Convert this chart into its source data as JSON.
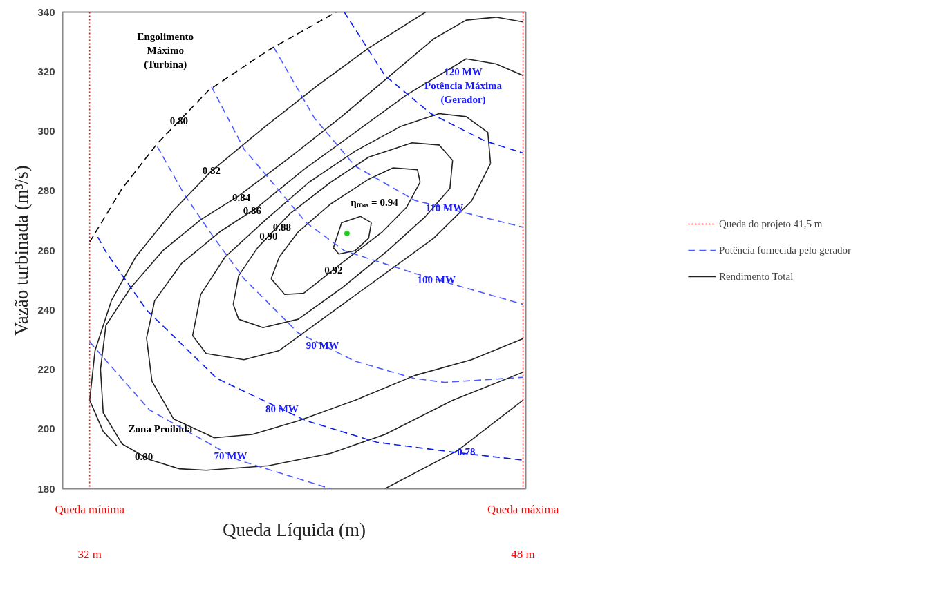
{
  "chart_data": {
    "type": "line",
    "xlabel": "Queda Líquida (m)",
    "ylabel": "Vazão turbinada (m³/s)",
    "xlim": [
      31,
      48.1
    ],
    "ylim": [
      180,
      340
    ],
    "xticks": [
      {
        "value": 32,
        "label": "32 m"
      },
      {
        "value": 48,
        "label": "48 m"
      }
    ],
    "yticks": [
      180,
      200,
      220,
      240,
      260,
      280,
      300,
      320,
      340
    ],
    "grid": false,
    "legend": "right",
    "marker": "none",
    "ref_lines": [
      {
        "axis": "x",
        "value": 32,
        "label": "Queda mínima",
        "color": "#ff0000",
        "line_style": "dotted"
      },
      {
        "axis": "x",
        "value": 48,
        "label": "Queda máxima",
        "color": "#ff0000",
        "line_style": "dotted"
      }
    ],
    "series": [
      {
        "name": "Potência fornecida pelo gerador",
        "color": "#4d5cff",
        "line_style": "dashed",
        "x": [
          34.5,
          35.5,
          36.6,
          37.7,
          39.7,
          41.8,
          44.0,
          45.1,
          48.0
        ],
        "values": [
          294.8,
          278.7,
          264.1,
          250.5,
          232.3,
          222.8,
          217.0,
          215.7,
          217.4
        ]
      },
      {
        "name": "Rendimento Total",
        "color": "#222222",
        "line_style": "solid",
        "x": [
          41.0,
          41.3,
          42.0,
          42.4
        ],
        "values": [
          260.9,
          269.3,
          271.4,
          269.3
        ]
      },
      {
        "color": "#222222",
        "line_style": "solid",
        "x": [
          42.4,
          42.3,
          41.8,
          41.2,
          41.0
        ],
        "values": [
          269.3,
          264.1,
          259.9,
          258.8,
          260.9
        ]
      },
      {
        "color": "#222222",
        "line_style": "solid",
        "x": [
          38.7,
          39.0,
          39.7,
          40.9,
          42.3,
          43.2,
          44.1,
          44.2
        ],
        "values": [
          250.5,
          257.8,
          266.2,
          275.6,
          283.9,
          287.7,
          287.1,
          282.9
        ]
      },
      {
        "color": "#222222",
        "line_style": "solid",
        "x": [
          44.2,
          43.7,
          42.8,
          41.3,
          39.9,
          39.2,
          38.7
        ],
        "values": [
          282.9,
          274.5,
          266.2,
          255.7,
          245.6,
          245.2,
          250.5
        ]
      },
      {
        "color": "#222222",
        "line_style": "solid",
        "x": [
          37.3,
          37.5,
          38.2,
          39.4,
          40.9,
          42.3,
          43.9,
          44.9,
          45.4
        ],
        "values": [
          241.9,
          251.5,
          260.9,
          272.4,
          282.9,
          291.3,
          296.1,
          295.4,
          290.2
        ]
      },
      {
        "color": "#222222",
        "line_style": "solid",
        "x": [
          45.4,
          45.3,
          44.4,
          43.0,
          41.3,
          39.7,
          38.4,
          37.5,
          37.3
        ],
        "values": [
          290.2,
          280.8,
          271.4,
          259.9,
          247.3,
          236.9,
          234.1,
          236.9,
          241.9
        ]
      },
      {
        "color": "#222222",
        "line_style": "solid",
        "x": [
          35.8,
          36.1,
          37.0,
          38.5,
          40.1,
          41.8,
          43.5,
          44.9,
          45.9,
          46.7,
          46.8
        ],
        "values": [
          231.4,
          245.2,
          257.8,
          270.3,
          282.9,
          293.3,
          301.7,
          305.9,
          304.9,
          299.6,
          289.2
        ]
      },
      {
        "color": "#222222",
        "line_style": "solid",
        "x": [
          46.8,
          46.1,
          44.7,
          42.8,
          40.9,
          39.0,
          37.7,
          36.3,
          35.8
        ],
        "values": [
          289.2,
          276.6,
          264.1,
          251.5,
          239.0,
          226.4,
          223.3,
          225.4,
          231.4
        ]
      },
      {
        "color": "#222222",
        "line_style": "solid",
        "x": [
          48.0,
          46.1,
          44.0,
          41.8,
          39.7,
          38.0,
          36.6,
          35.1,
          34.3,
          34.1,
          34.4,
          35.4,
          36.8,
          38.2,
          39.9,
          41.8,
          43.7,
          45.9,
          47.0,
          48.0
        ],
        "values": [
          230.4,
          223.3,
          218.0,
          209.7,
          202.8,
          198.2,
          197.1,
          203.4,
          216.1,
          230.6,
          243.1,
          255.7,
          266.2,
          274.5,
          287.1,
          299.6,
          312.2,
          324.3,
          322.6,
          318.7
        ]
      },
      {
        "color": "#222222",
        "line_style": "solid",
        "x": [
          48.0,
          45.4,
          42.9,
          40.9,
          38.6,
          36.3,
          35.3,
          34.2,
          33.2,
          32.5,
          32.4,
          32.6,
          33.5,
          34.7,
          36.1,
          37.5,
          39.4,
          41.3,
          43.2,
          44.7,
          45.9,
          47.0,
          48.0
        ],
        "values": [
          219.1,
          209.7,
          198.2,
          191.9,
          187.7,
          186.2,
          186.7,
          189.8,
          195.0,
          205.5,
          220.1,
          234.8,
          247.3,
          259.9,
          270.3,
          278.3,
          291.3,
          304.9,
          319.5,
          331.0,
          337.3,
          338.3,
          336.7
        ]
      },
      {
        "color": "#222222",
        "line_style": "solid",
        "x": [
          33.0,
          32.5,
          32.0,
          32.2,
          32.8,
          33.7,
          35.1,
          36.5,
          38.5,
          40.4,
          42.3,
          44.4
        ],
        "values": [
          194.4,
          199.2,
          209.7,
          226.4,
          243.1,
          257.8,
          273.5,
          286.7,
          301.7,
          315.3,
          327.9,
          340
        ]
      },
      {
        "color": "#222222",
        "line_style": "solid",
        "x": [
          42.9,
          45.6,
          48.0
        ],
        "values": [
          180,
          192.9,
          209.7
        ]
      },
      {
        "color": "#000000",
        "line_style": "dashed",
        "x": [
          32.0,
          33.2,
          34.5,
          36.4,
          38.6,
          41.1
        ],
        "values": [
          262.8,
          280.8,
          295.9,
          313.8,
          327.2,
          340
        ]
      },
      {
        "color": "#0a1ef0",
        "line_style": "dashed",
        "x": [
          41.4,
          42.9,
          44.6,
          46.6,
          48.0
        ],
        "values": [
          340,
          318.7,
          305.9,
          296.7,
          292.7
        ]
      },
      {
        "color": "#0a1ef0",
        "line_style": "dashed",
        "x": [
          32.3,
          32.6,
          34.1,
          36.7,
          40.0,
          42.6,
          45.4,
          48.0
        ],
        "values": [
          264.5,
          259.5,
          240.0,
          217.0,
          202.8,
          195.6,
          192.3,
          189.6
        ]
      },
      {
        "color": "#4d5cff",
        "line_style": "dashed",
        "x": [
          38.8,
          40.3,
          41.8,
          44.0,
          48.0
        ],
        "values": [
          328.1,
          304.4,
          288.3,
          276.8,
          267.8
        ]
      },
      {
        "color": "#4d5cff",
        "line_style": "dashed",
        "x": [
          36.5,
          37.7,
          40.0,
          41.4,
          44.0,
          48.0
        ],
        "values": [
          314.9,
          294.0,
          269.3,
          259.9,
          252.3,
          241.9
        ]
      },
      {
        "color": "#4d5cff",
        "line_style": "dashed",
        "x": [
          32.0,
          34.2,
          37.5,
          40.9
        ],
        "values": [
          229.3,
          206.5,
          189.6,
          180
        ]
      },
      {
        "type": "scatter",
        "color": "#22cc22",
        "x": [
          41.5
        ],
        "values": [
          265.7
        ]
      }
    ],
    "annotations": [
      "Queda do projeto 41,5 m",
      "Engolimento",
      "Máximo",
      "(Turbina)",
      "ηₘₐₓ = 0.94",
      "120 MW",
      "Potência Máxima",
      "(Gerador)",
      "Zona Proibida",
      {
        "text": "0.80",
        "x": 35.3,
        "y": 303.4
      },
      {
        "text": "0.82",
        "x": 36.5,
        "y": 286.7
      },
      {
        "text": "0.84",
        "x": 37.6,
        "y": 277.7
      },
      {
        "text": "0.86",
        "x": 38.0,
        "y": 273.3
      },
      {
        "text": "0.88",
        "x": 39.1,
        "y": 267.8
      },
      {
        "text": "0.90",
        "x": 38.6,
        "y": 264.7
      },
      {
        "text": "0.92",
        "x": 41.0,
        "y": 253.5
      },
      {
        "text": "0.80",
        "x": 34.0,
        "y": 190.8
      },
      {
        "text": "0.78",
        "x": 45.9,
        "y": 192.5
      },
      {
        "text": "110 MW",
        "x": 45.1,
        "y": 274.3
      },
      {
        "text": "100 MW",
        "x": 44.8,
        "y": 250.2
      },
      {
        "text": "90 MW",
        "x": 40.6,
        "y": 228.2
      },
      {
        "text": "80 MW",
        "x": 39.1,
        "y": 206.7
      },
      {
        "text": "70 MW",
        "x": 37.2,
        "y": 191.1
      }
    ]
  }
}
